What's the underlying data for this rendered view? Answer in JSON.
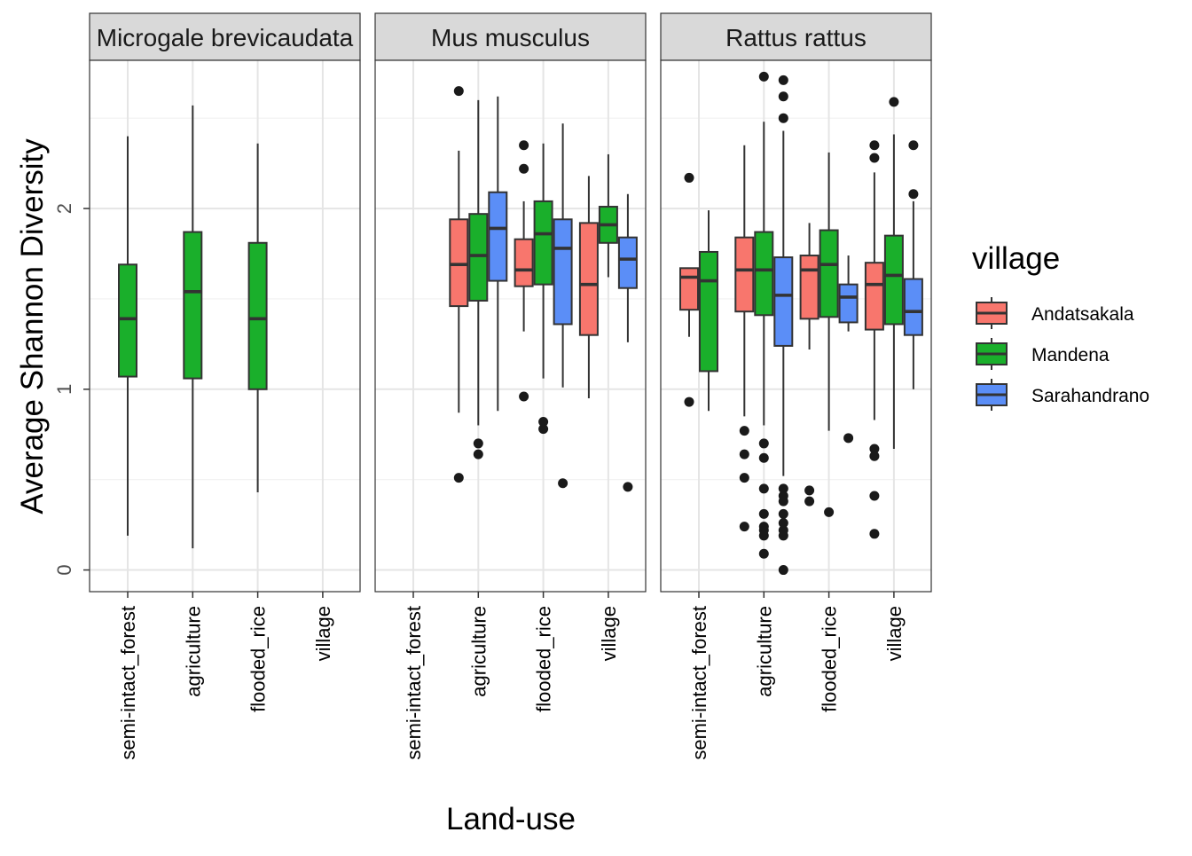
{
  "chart_data": {
    "type": "box",
    "ylabel": "Average Shannon Diversity",
    "xlabel": "Land-use",
    "ylim": [
      -0.12,
      2.82
    ],
    "y_ticks": [
      0,
      1,
      2
    ],
    "categories": [
      "semi-intact_forest",
      "agriculture",
      "flooded_rice",
      "village"
    ],
    "legend": {
      "title": "village",
      "position": "right",
      "entries": [
        {
          "name": "Andatsakala",
          "color": "#F8766D"
        },
        {
          "name": "Mandena",
          "color": "#1AAF2B"
        },
        {
          "name": "Sarahandrano",
          "color": "#5B8EF7"
        }
      ]
    },
    "grid": true,
    "panels": [
      {
        "title": "Microgale brevicaudata",
        "boxes": [
          {
            "category": "semi-intact_forest",
            "group": "Mandena",
            "slot": 0,
            "n": 1,
            "whisker_low": 0.19,
            "q1": 1.07,
            "median": 1.39,
            "q3": 1.69,
            "whisker_high": 2.4,
            "outliers": []
          },
          {
            "category": "agriculture",
            "group": "Mandena",
            "slot": 0,
            "n": 1,
            "whisker_low": 0.12,
            "q1": 1.06,
            "median": 1.54,
            "q3": 1.87,
            "whisker_high": 2.57,
            "outliers": []
          },
          {
            "category": "flooded_rice",
            "group": "Mandena",
            "slot": 0,
            "n": 1,
            "whisker_low": 0.43,
            "q1": 1.0,
            "median": 1.39,
            "q3": 1.81,
            "whisker_high": 2.36,
            "outliers": []
          }
        ]
      },
      {
        "title": "Mus musculus",
        "boxes": [
          {
            "category": "agriculture",
            "group": "Andatsakala",
            "slot": 0,
            "n": 3,
            "whisker_low": 0.87,
            "q1": 1.46,
            "median": 1.69,
            "q3": 1.94,
            "whisker_high": 2.32,
            "outliers": [
              0.51,
              2.65
            ]
          },
          {
            "category": "agriculture",
            "group": "Mandena",
            "slot": 1,
            "n": 3,
            "whisker_low": 0.8,
            "q1": 1.49,
            "median": 1.74,
            "q3": 1.97,
            "whisker_high": 2.6,
            "outliers": [
              0.64,
              0.7
            ]
          },
          {
            "category": "agriculture",
            "group": "Sarahandrano",
            "slot": 2,
            "n": 3,
            "whisker_low": 0.88,
            "q1": 1.6,
            "median": 1.89,
            "q3": 2.09,
            "whisker_high": 2.62,
            "outliers": []
          },
          {
            "category": "flooded_rice",
            "group": "Andatsakala",
            "slot": 0,
            "n": 3,
            "whisker_low": 1.32,
            "q1": 1.57,
            "median": 1.66,
            "q3": 1.83,
            "whisker_high": 2.04,
            "outliers": [
              0.96,
              2.22,
              2.35
            ]
          },
          {
            "category": "flooded_rice",
            "group": "Mandena",
            "slot": 1,
            "n": 3,
            "whisker_low": 1.06,
            "q1": 1.58,
            "median": 1.86,
            "q3": 2.04,
            "whisker_high": 2.36,
            "outliers": [
              0.78,
              0.82
            ]
          },
          {
            "category": "flooded_rice",
            "group": "Sarahandrano",
            "slot": 2,
            "n": 3,
            "whisker_low": 1.01,
            "q1": 1.36,
            "median": 1.78,
            "q3": 1.94,
            "whisker_high": 2.47,
            "outliers": [
              0.48
            ]
          },
          {
            "category": "village",
            "group": "Andatsakala",
            "slot": 0,
            "n": 3,
            "whisker_low": 0.95,
            "q1": 1.3,
            "median": 1.58,
            "q3": 1.92,
            "whisker_high": 2.18,
            "outliers": []
          },
          {
            "category": "village",
            "group": "Mandena",
            "slot": 1,
            "n": 3,
            "whisker_low": 1.62,
            "q1": 1.81,
            "median": 1.91,
            "q3": 2.01,
            "whisker_high": 2.3,
            "outliers": []
          },
          {
            "category": "village",
            "group": "Sarahandrano",
            "slot": 2,
            "n": 3,
            "whisker_low": 1.26,
            "q1": 1.56,
            "median": 1.72,
            "q3": 1.84,
            "whisker_high": 2.08,
            "outliers": [
              0.46
            ]
          }
        ]
      },
      {
        "title": "Rattus rattus",
        "boxes": [
          {
            "category": "semi-intact_forest",
            "group": "Andatsakala",
            "slot": 0,
            "n": 2,
            "whisker_low": 1.29,
            "q1": 1.44,
            "median": 1.62,
            "q3": 1.67,
            "whisker_high": 1.67,
            "outliers": [
              0.93,
              2.17
            ]
          },
          {
            "category": "semi-intact_forest",
            "group": "Mandena",
            "slot": 1,
            "n": 2,
            "whisker_low": 0.88,
            "q1": 1.1,
            "median": 1.6,
            "q3": 1.76,
            "whisker_high": 1.99,
            "outliers": []
          },
          {
            "category": "agriculture",
            "group": "Andatsakala",
            "slot": 0,
            "n": 3,
            "whisker_low": 0.85,
            "q1": 1.43,
            "median": 1.66,
            "q3": 1.84,
            "whisker_high": 2.35,
            "outliers": [
              0.24,
              0.51,
              0.64,
              0.77
            ]
          },
          {
            "category": "agriculture",
            "group": "Mandena",
            "slot": 1,
            "n": 3,
            "whisker_low": 0.8,
            "q1": 1.41,
            "median": 1.66,
            "q3": 1.87,
            "whisker_high": 2.48,
            "outliers": [
              0.09,
              0.19,
              0.22,
              0.24,
              0.31,
              0.45,
              0.62,
              0.7,
              2.73
            ]
          },
          {
            "category": "agriculture",
            "group": "Sarahandrano",
            "slot": 2,
            "n": 3,
            "whisker_low": 0.52,
            "q1": 1.24,
            "median": 1.52,
            "q3": 1.73,
            "whisker_high": 2.43,
            "outliers": [
              0.0,
              0.19,
              0.22,
              0.26,
              0.31,
              0.38,
              0.41,
              0.45,
              2.5,
              2.62,
              2.71
            ]
          },
          {
            "category": "flooded_rice",
            "group": "Andatsakala",
            "slot": 0,
            "n": 3,
            "whisker_low": 1.22,
            "q1": 1.39,
            "median": 1.66,
            "q3": 1.74,
            "whisker_high": 1.92,
            "outliers": [
              0.38,
              0.44
            ]
          },
          {
            "category": "flooded_rice",
            "group": "Mandena",
            "slot": 1,
            "n": 3,
            "whisker_low": 0.77,
            "q1": 1.4,
            "median": 1.69,
            "q3": 1.88,
            "whisker_high": 2.31,
            "outliers": [
              0.32
            ]
          },
          {
            "category": "flooded_rice",
            "group": "Sarahandrano",
            "slot": 2,
            "n": 3,
            "whisker_low": 1.32,
            "q1": 1.37,
            "median": 1.51,
            "q3": 1.58,
            "whisker_high": 1.74,
            "outliers": [
              0.73
            ]
          },
          {
            "category": "village",
            "group": "Andatsakala",
            "slot": 0,
            "n": 3,
            "whisker_low": 0.83,
            "q1": 1.33,
            "median": 1.58,
            "q3": 1.7,
            "whisker_high": 2.2,
            "outliers": [
              0.2,
              0.41,
              0.63,
              0.67,
              2.28,
              2.35
            ]
          },
          {
            "category": "village",
            "group": "Mandena",
            "slot": 1,
            "n": 3,
            "whisker_low": 0.67,
            "q1": 1.36,
            "median": 1.63,
            "q3": 1.85,
            "whisker_high": 2.41,
            "outliers": [
              2.59
            ]
          },
          {
            "category": "village",
            "group": "Sarahandrano",
            "slot": 2,
            "n": 3,
            "whisker_low": 1.0,
            "q1": 1.3,
            "median": 1.43,
            "q3": 1.61,
            "whisker_high": 2.04,
            "outliers": [
              2.08,
              2.35
            ]
          }
        ]
      }
    ]
  }
}
